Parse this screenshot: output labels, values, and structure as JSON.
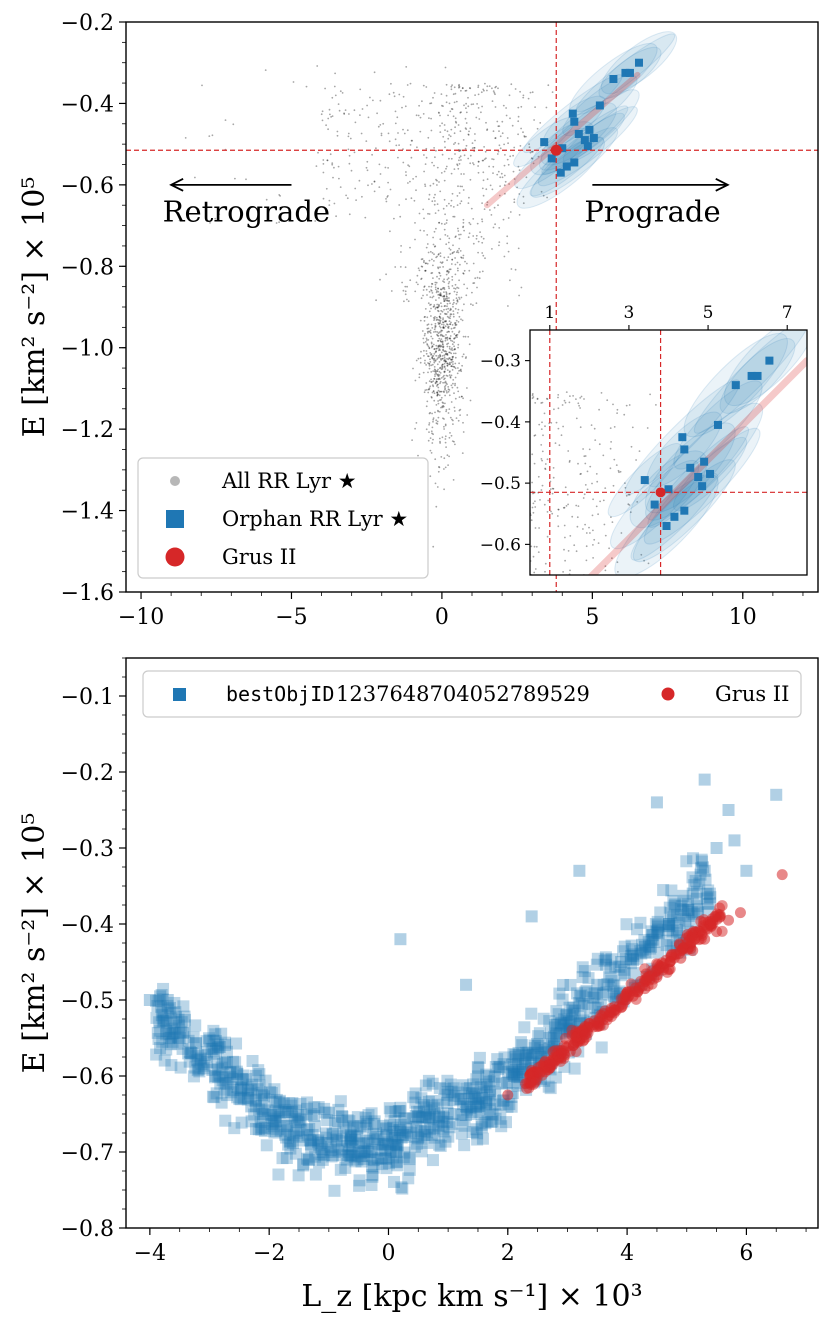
{
  "chart_data": [
    {
      "id": "top",
      "type": "scatter",
      "xlim": [
        -10.5,
        12.5
      ],
      "ylim": [
        -1.6,
        -0.2
      ],
      "xticks": [
        -10,
        -5,
        0,
        5,
        10
      ],
      "xtick_labels": [
        "−10",
        "−5",
        "0",
        "5",
        "10"
      ],
      "yticks": [
        -1.6,
        -1.4,
        -1.2,
        -1.0,
        -0.8,
        -0.6,
        -0.4,
        -0.2
      ],
      "ytick_labels": [
        "−1.6",
        "−1.4",
        "−1.2",
        "−1.0",
        "−0.8",
        "−0.6",
        "−0.4",
        "−0.2"
      ],
      "ylabel": "E [km² s⁻²] × 10⁵",
      "xlabel": "",
      "grid": false,
      "reference_lines": {
        "x": 3.8,
        "y": -0.515,
        "color": "#d62728"
      },
      "annotations": [
        {
          "text": "Retrograde",
          "arrow_from": -5,
          "arrow_to": -9,
          "arrow_y": -0.6,
          "text_x": -6.5,
          "text_y": -0.69
        },
        {
          "text": "Prograde",
          "arrow_from": 5,
          "arrow_to": 9.5,
          "arrow_y": -0.6,
          "text_x": 7,
          "text_y": -0.69
        }
      ],
      "legend": {
        "placement": "lower-left",
        "entries": [
          {
            "label": "All RR Lyr ★",
            "marker": "circle",
            "color": "#999999"
          },
          {
            "label": "Orphan RR Lyr ★",
            "marker": "square",
            "color": "#1f77b4"
          },
          {
            "label": "Grus II",
            "marker": "circle",
            "color": "#d62728"
          }
        ]
      },
      "series": [
        {
          "name": "Orphan RR Lyr ★",
          "color": "#1f77b4",
          "marker": "square",
          "x": [
            3.4,
            3.65,
            3.95,
            4.35,
            4.4,
            4.55,
            4.75,
            4.85,
            4.0,
            4.15,
            4.4,
            4.9,
            5.05,
            5.25,
            5.7,
            6.1,
            6.25,
            6.55
          ],
          "y": [
            -0.495,
            -0.535,
            -0.57,
            -0.425,
            -0.445,
            -0.475,
            -0.49,
            -0.505,
            -0.51,
            -0.555,
            -0.545,
            -0.465,
            -0.485,
            -0.405,
            -0.34,
            -0.325,
            -0.325,
            -0.3
          ]
        },
        {
          "name": "Grus II",
          "color": "#d62728",
          "marker": "circle",
          "x": [
            3.8
          ],
          "y": [
            -0.515
          ]
        }
      ],
      "inset": {
        "xlim": [
          0.5,
          7.5
        ],
        "ylim": [
          -0.65,
          -0.25
        ],
        "xticks": [
          1,
          3,
          5,
          7
        ],
        "xtick_labels": [
          "1",
          "3",
          "5",
          "7"
        ],
        "yticks": [
          -0.6,
          -0.5,
          -0.4,
          -0.3
        ],
        "ytick_labels": [
          "−0.6",
          "−0.5",
          "−0.4",
          "−0.3"
        ]
      }
    },
    {
      "id": "bottom",
      "type": "scatter",
      "xlim": [
        -4.4,
        7.2
      ],
      "ylim": [
        -0.8,
        -0.05
      ],
      "xticks": [
        -4,
        -2,
        0,
        2,
        4,
        6
      ],
      "xtick_labels": [
        "−4",
        "−2",
        "0",
        "2",
        "4",
        "6"
      ],
      "yticks": [
        -0.8,
        -0.7,
        -0.6,
        -0.5,
        -0.4,
        -0.3,
        -0.2,
        -0.1
      ],
      "ytick_labels": [
        "−0.8",
        "−0.7",
        "−0.6",
        "−0.5",
        "−0.4",
        "−0.3",
        "−0.2",
        "−0.1"
      ],
      "ylabel": "E [km² s⁻²] × 10⁵",
      "xlabel": "L_z [kpc km s⁻¹] × 10³",
      "grid": false,
      "legend": {
        "placement": "top",
        "entries": [
          {
            "label_mono": "bestObjID",
            "label": " 1237648704052789529",
            "marker": "square",
            "color": "#1f77b4"
          },
          {
            "label": "Grus II",
            "marker": "circle",
            "color": "#d62728"
          }
        ]
      },
      "series": [
        {
          "name": "bestObjID 1237648704052789529",
          "color": "#1f77b4",
          "marker": "square",
          "x": [
            -4.0,
            -3.8,
            -3.7,
            -3.5,
            -3.3,
            -3.1,
            -2.9,
            -2.7,
            -2.5,
            -2.3,
            -2.1,
            -1.9,
            -1.7,
            -1.5,
            -1.3,
            -1.1,
            -0.9,
            -0.7,
            -0.5,
            -0.3,
            -0.1,
            0.1,
            0.3,
            0.5,
            0.7,
            0.9,
            1.1,
            1.3,
            1.5,
            1.7,
            1.9,
            2.1,
            2.3,
            2.5,
            2.7,
            2.9,
            3.1,
            3.3,
            3.5,
            3.7,
            3.9,
            4.1,
            4.3,
            4.5,
            4.7,
            4.9,
            5.1,
            5.3,
            5.5,
            5.7,
            6.0,
            6.5,
            0.2,
            1.3,
            2.4,
            3.2,
            4.5,
            5.3,
            5.8
          ],
          "y": [
            -0.5,
            -0.52,
            -0.5,
            -0.55,
            -0.57,
            -0.59,
            -0.6,
            -0.61,
            -0.63,
            -0.64,
            -0.65,
            -0.66,
            -0.67,
            -0.68,
            -0.69,
            -0.7,
            -0.7,
            -0.71,
            -0.7,
            -0.7,
            -0.69,
            -0.69,
            -0.68,
            -0.68,
            -0.67,
            -0.66,
            -0.65,
            -0.64,
            -0.63,
            -0.62,
            -0.61,
            -0.6,
            -0.59,
            -0.57,
            -0.55,
            -0.53,
            -0.51,
            -0.49,
            -0.48,
            -0.47,
            -0.45,
            -0.44,
            -0.43,
            -0.41,
            -0.4,
            -0.38,
            -0.36,
            -0.33,
            -0.3,
            -0.25,
            -0.33,
            -0.23,
            -0.42,
            -0.48,
            -0.39,
            -0.33,
            -0.24,
            -0.21,
            -0.29
          ]
        },
        {
          "name": "Grus II",
          "color": "#d62728",
          "marker": "circle",
          "x": [
            2.0,
            2.3,
            2.5,
            2.7,
            2.9,
            3.1,
            3.3,
            3.5,
            3.7,
            3.9,
            4.1,
            4.3,
            4.5,
            4.7,
            4.9,
            5.1,
            5.3,
            5.5,
            5.7,
            5.9,
            6.6
          ],
          "y": [
            -0.625,
            -0.61,
            -0.595,
            -0.585,
            -0.57,
            -0.56,
            -0.545,
            -0.535,
            -0.52,
            -0.51,
            -0.495,
            -0.485,
            -0.47,
            -0.46,
            -0.445,
            -0.435,
            -0.42,
            -0.41,
            -0.395,
            -0.385,
            -0.335
          ]
        }
      ]
    }
  ]
}
